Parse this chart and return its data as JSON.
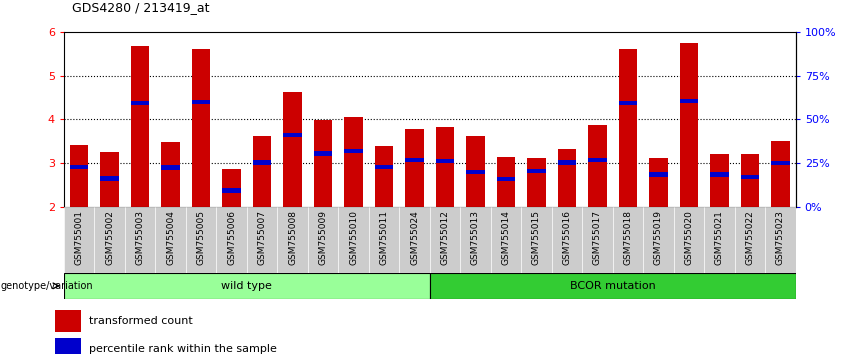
{
  "title": "GDS4280 / 213419_at",
  "samples": [
    "GSM755001",
    "GSM755002",
    "GSM755003",
    "GSM755004",
    "GSM755005",
    "GSM755006",
    "GSM755007",
    "GSM755008",
    "GSM755009",
    "GSM755010",
    "GSM755011",
    "GSM755024",
    "GSM755012",
    "GSM755013",
    "GSM755014",
    "GSM755015",
    "GSM755016",
    "GSM755017",
    "GSM755018",
    "GSM755019",
    "GSM755020",
    "GSM755021",
    "GSM755022",
    "GSM755023"
  ],
  "transformed_count": [
    3.42,
    3.26,
    5.68,
    3.48,
    5.6,
    2.88,
    3.62,
    4.62,
    3.98,
    4.06,
    3.4,
    3.78,
    3.82,
    3.62,
    3.15,
    3.12,
    3.32,
    3.87,
    5.6,
    3.12,
    5.75,
    3.22,
    3.22,
    3.5
  ],
  "percentile_rank": [
    2.92,
    2.65,
    4.38,
    2.9,
    4.4,
    2.38,
    3.02,
    3.65,
    3.22,
    3.28,
    2.92,
    3.08,
    3.05,
    2.8,
    2.64,
    2.82,
    3.02,
    3.08,
    4.38,
    2.74,
    4.42,
    2.74,
    2.68,
    3.0
  ],
  "wild_type_count": 12,
  "bcor_count": 12,
  "ylim_left": [
    2,
    6
  ],
  "yticks_left": [
    2,
    3,
    4,
    5,
    6
  ],
  "yticks_right": [
    0,
    25,
    50,
    75,
    100
  ],
  "bar_color_red": "#CC0000",
  "bar_color_blue": "#0000CC",
  "wild_type_color": "#99FF99",
  "bcor_color": "#33CC33",
  "label_area_color": "#CCCCCC",
  "legend_red": "transformed count",
  "legend_blue": "percentile rank within the sample",
  "group_label_left": "wild type",
  "group_label_right": "BCOR mutation",
  "genotype_label": "genotype/variation"
}
